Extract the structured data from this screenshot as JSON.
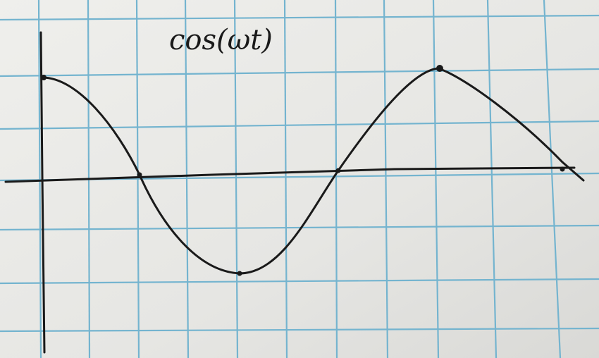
{
  "title": "cos(ωt)"
}
